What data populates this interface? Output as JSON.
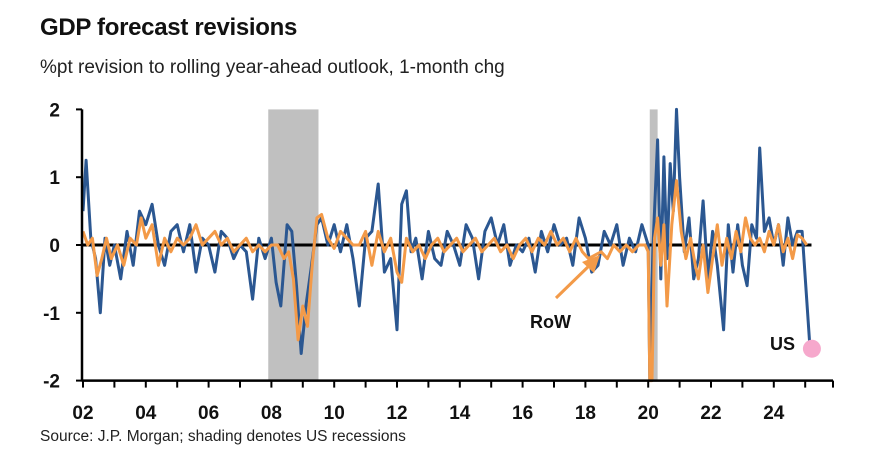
{
  "chart_data": {
    "type": "line",
    "title": "GDP forecast revisions",
    "subtitle": "%pt revision to rolling year-ahead outlook, 1-month chg",
    "source": "Source: J.P. Morgan; shading denotes US recessions",
    "xlabel": "",
    "ylabel": "",
    "xlim": [
      2002,
      2025.9
    ],
    "ylim": [
      -2,
      2
    ],
    "yticks": [
      2,
      1,
      0,
      -1,
      -2
    ],
    "xtick_labels": [
      "02",
      "04",
      "06",
      "08",
      "10",
      "12",
      "14",
      "16",
      "18",
      "20",
      "22",
      "24"
    ],
    "grid": false,
    "legend": "none",
    "recessions": [
      [
        2007.9,
        2009.5
      ],
      [
        2020.05,
        2020.3
      ]
    ],
    "colors": {
      "US": "#2b5791",
      "RoW": "#f39a48",
      "recession": "#c0c0c0",
      "endpoint": "#f6a8cc"
    },
    "annotations": [
      {
        "text": "RoW",
        "series": "RoW",
        "arrow": true
      },
      {
        "text": "US",
        "series": "US",
        "endpoint_marker": true
      }
    ],
    "series": [
      {
        "name": "US",
        "points": [
          [
            2002.0,
            0.5
          ],
          [
            2002.1,
            1.25
          ],
          [
            2002.25,
            0.1
          ],
          [
            2002.4,
            -0.2
          ],
          [
            2002.55,
            -1.0
          ],
          [
            2002.7,
            0.1
          ],
          [
            2002.85,
            -0.3
          ],
          [
            2003.0,
            0.0
          ],
          [
            2003.2,
            -0.5
          ],
          [
            2003.4,
            0.2
          ],
          [
            2003.6,
            -0.3
          ],
          [
            2003.8,
            0.5
          ],
          [
            2004.0,
            0.3
          ],
          [
            2004.2,
            0.6
          ],
          [
            2004.4,
            0.0
          ],
          [
            2004.6,
            -0.3
          ],
          [
            2004.8,
            0.2
          ],
          [
            2005.0,
            0.3
          ],
          [
            2005.2,
            -0.1
          ],
          [
            2005.4,
            0.3
          ],
          [
            2005.6,
            -0.4
          ],
          [
            2005.8,
            0.1
          ],
          [
            2006.0,
            0.0
          ],
          [
            2006.2,
            -0.4
          ],
          [
            2006.4,
            0.2
          ],
          [
            2006.6,
            0.1
          ],
          [
            2006.8,
            -0.2
          ],
          [
            2007.0,
            0.0
          ],
          [
            2007.2,
            -0.1
          ],
          [
            2007.4,
            -0.8
          ],
          [
            2007.6,
            0.1
          ],
          [
            2007.8,
            -0.2
          ],
          [
            2008.0,
            0.1
          ],
          [
            2008.15,
            -0.55
          ],
          [
            2008.3,
            -0.9
          ],
          [
            2008.5,
            0.3
          ],
          [
            2008.65,
            0.2
          ],
          [
            2008.8,
            -0.6
          ],
          [
            2008.95,
            -1.6
          ],
          [
            2009.1,
            -0.9
          ],
          [
            2009.25,
            -0.4
          ],
          [
            2009.45,
            0.3
          ],
          [
            2009.6,
            0.4
          ],
          [
            2009.8,
            0.0
          ],
          [
            2010.0,
            0.3
          ],
          [
            2010.2,
            -0.1
          ],
          [
            2010.4,
            0.3
          ],
          [
            2010.6,
            -0.2
          ],
          [
            2010.8,
            -0.9
          ],
          [
            2011.0,
            0.1
          ],
          [
            2011.2,
            0.2
          ],
          [
            2011.4,
            0.9
          ],
          [
            2011.6,
            -0.4
          ],
          [
            2011.8,
            -0.2
          ],
          [
            2012.0,
            -1.25
          ],
          [
            2012.15,
            0.6
          ],
          [
            2012.3,
            0.8
          ],
          [
            2012.45,
            -0.1
          ],
          [
            2012.6,
            0.1
          ],
          [
            2012.8,
            -0.5
          ],
          [
            2013.0,
            0.2
          ],
          [
            2013.2,
            -0.2
          ],
          [
            2013.4,
            -0.3
          ],
          [
            2013.6,
            0.2
          ],
          [
            2013.8,
            0.0
          ],
          [
            2014.0,
            -0.3
          ],
          [
            2014.2,
            0.3
          ],
          [
            2014.4,
            0.1
          ],
          [
            2014.6,
            -0.5
          ],
          [
            2014.8,
            0.2
          ],
          [
            2015.0,
            0.4
          ],
          [
            2015.2,
            0.0
          ],
          [
            2015.4,
            0.3
          ],
          [
            2015.6,
            -0.3
          ],
          [
            2015.8,
            0.0
          ],
          [
            2016.0,
            -0.1
          ],
          [
            2016.2,
            0.1
          ],
          [
            2016.4,
            -0.4
          ],
          [
            2016.6,
            0.2
          ],
          [
            2016.8,
            -0.1
          ],
          [
            2017.0,
            0.3
          ],
          [
            2017.2,
            0.0
          ],
          [
            2017.4,
            0.1
          ],
          [
            2017.6,
            -0.3
          ],
          [
            2017.8,
            0.4
          ],
          [
            2018.0,
            0.1
          ],
          [
            2018.2,
            -0.4
          ],
          [
            2018.4,
            -0.3
          ],
          [
            2018.6,
            0.2
          ],
          [
            2018.8,
            0.0
          ],
          [
            2019.0,
            0.3
          ],
          [
            2019.2,
            -0.3
          ],
          [
            2019.4,
            0.1
          ],
          [
            2019.6,
            -0.1
          ],
          [
            2019.8,
            0.3
          ],
          [
            2020.0,
            0.0
          ],
          [
            2020.05,
            -2.0
          ],
          [
            2020.15,
            -0.05
          ],
          [
            2020.3,
            1.55
          ],
          [
            2020.4,
            -0.5
          ],
          [
            2020.5,
            1.3
          ],
          [
            2020.6,
            -0.2
          ],
          [
            2020.7,
            1.2
          ],
          [
            2020.8,
            0.5
          ],
          [
            2020.9,
            2.0
          ],
          [
            2021.0,
            1.0
          ],
          [
            2021.15,
            -0.1
          ],
          [
            2021.3,
            0.4
          ],
          [
            2021.45,
            -0.5
          ],
          [
            2021.6,
            -0.2
          ],
          [
            2021.75,
            0.65
          ],
          [
            2021.9,
            -0.5
          ],
          [
            2022.05,
            0.2
          ],
          [
            2022.2,
            -0.3
          ],
          [
            2022.4,
            -1.25
          ],
          [
            2022.55,
            0.3
          ],
          [
            2022.7,
            -0.4
          ],
          [
            2022.85,
            0.3
          ],
          [
            2023.0,
            -0.3
          ],
          [
            2023.15,
            -0.6
          ],
          [
            2023.3,
            0.3
          ],
          [
            2023.45,
            0.1
          ],
          [
            2023.55,
            1.43
          ],
          [
            2023.7,
            0.2
          ],
          [
            2023.85,
            0.4
          ],
          [
            2024.0,
            0.0
          ],
          [
            2024.15,
            0.3
          ],
          [
            2024.3,
            -0.3
          ],
          [
            2024.45,
            0.4
          ],
          [
            2024.6,
            0.0
          ],
          [
            2024.75,
            0.2
          ],
          [
            2024.9,
            0.2
          ],
          [
            2025.15,
            -1.5
          ]
        ]
      },
      {
        "name": "RoW",
        "points": [
          [
            2002.0,
            0.2
          ],
          [
            2002.15,
            0.0
          ],
          [
            2002.3,
            0.1
          ],
          [
            2002.45,
            -0.45
          ],
          [
            2002.6,
            -0.2
          ],
          [
            2002.75,
            0.1
          ],
          [
            2002.9,
            -0.2
          ],
          [
            2003.1,
            0.0
          ],
          [
            2003.3,
            -0.3
          ],
          [
            2003.5,
            0.1
          ],
          [
            2003.7,
            0.0
          ],
          [
            2003.85,
            0.4
          ],
          [
            2004.0,
            0.1
          ],
          [
            2004.2,
            0.3
          ],
          [
            2004.4,
            -0.3
          ],
          [
            2004.6,
            0.1
          ],
          [
            2004.8,
            -0.1
          ],
          [
            2005.0,
            0.1
          ],
          [
            2005.2,
            0.0
          ],
          [
            2005.4,
            0.1
          ],
          [
            2005.6,
            0.3
          ],
          [
            2005.8,
            0.0
          ],
          [
            2006.0,
            0.1
          ],
          [
            2006.2,
            0.2
          ],
          [
            2006.4,
            0.0
          ],
          [
            2006.6,
            0.1
          ],
          [
            2006.8,
            -0.1
          ],
          [
            2007.0,
            0.0
          ],
          [
            2007.2,
            0.1
          ],
          [
            2007.4,
            -0.1
          ],
          [
            2007.6,
            0.0
          ],
          [
            2007.8,
            -0.1
          ],
          [
            2008.0,
            0.0
          ],
          [
            2008.2,
            0.0
          ],
          [
            2008.4,
            -0.2
          ],
          [
            2008.55,
            -0.1
          ],
          [
            2008.7,
            -0.5
          ],
          [
            2008.85,
            -1.4
          ],
          [
            2009.0,
            -0.9
          ],
          [
            2009.15,
            -1.2
          ],
          [
            2009.3,
            -0.3
          ],
          [
            2009.45,
            0.4
          ],
          [
            2009.6,
            0.45
          ],
          [
            2009.8,
            0.1
          ],
          [
            2010.0,
            -0.05
          ],
          [
            2010.2,
            0.2
          ],
          [
            2010.4,
            0.1
          ],
          [
            2010.6,
            0.0
          ],
          [
            2010.8,
            0.0
          ],
          [
            2011.0,
            0.2
          ],
          [
            2011.2,
            -0.3
          ],
          [
            2011.4,
            0.2
          ],
          [
            2011.6,
            -0.1
          ],
          [
            2011.8,
            0.1
          ],
          [
            2012.0,
            -0.4
          ],
          [
            2012.15,
            -0.55
          ],
          [
            2012.3,
            0.1
          ],
          [
            2012.5,
            -0.1
          ],
          [
            2012.7,
            0.0
          ],
          [
            2012.9,
            -0.2
          ],
          [
            2013.1,
            0.0
          ],
          [
            2013.3,
            0.1
          ],
          [
            2013.5,
            -0.1
          ],
          [
            2013.7,
            0.0
          ],
          [
            2013.9,
            0.1
          ],
          [
            2014.1,
            -0.1
          ],
          [
            2014.3,
            0.0
          ],
          [
            2014.5,
            0.1
          ],
          [
            2014.7,
            -0.1
          ],
          [
            2014.9,
            0.0
          ],
          [
            2015.1,
            0.1
          ],
          [
            2015.3,
            -0.1
          ],
          [
            2015.5,
            0.0
          ],
          [
            2015.7,
            -0.2
          ],
          [
            2015.9,
            0.0
          ],
          [
            2016.1,
            0.1
          ],
          [
            2016.3,
            -0.1
          ],
          [
            2016.5,
            0.1
          ],
          [
            2016.7,
            0.0
          ],
          [
            2016.9,
            0.2
          ],
          [
            2017.1,
            0.0
          ],
          [
            2017.3,
            0.1
          ],
          [
            2017.5,
            -0.1
          ],
          [
            2017.7,
            0.1
          ],
          [
            2017.9,
            -0.1
          ],
          [
            2018.1,
            -0.2
          ],
          [
            2018.3,
            -0.15
          ],
          [
            2018.5,
            -0.1
          ],
          [
            2018.7,
            -0.2
          ],
          [
            2018.9,
            0.0
          ],
          [
            2019.1,
            -0.1
          ],
          [
            2019.3,
            0.0
          ],
          [
            2019.5,
            -0.1
          ],
          [
            2019.7,
            0.0
          ],
          [
            2019.9,
            0.0
          ],
          [
            2020.0,
            -0.1
          ],
          [
            2020.05,
            -2.0
          ],
          [
            2020.12,
            -2.0
          ],
          [
            2020.2,
            0.1
          ],
          [
            2020.3,
            0.4
          ],
          [
            2020.4,
            -0.3
          ],
          [
            2020.5,
            0.3
          ],
          [
            2020.6,
            -0.9
          ],
          [
            2020.75,
            0.3
          ],
          [
            2020.9,
            0.95
          ],
          [
            2021.05,
            0.2
          ],
          [
            2021.2,
            -0.2
          ],
          [
            2021.35,
            0.1
          ],
          [
            2021.5,
            -0.3
          ],
          [
            2021.6,
            -0.5
          ],
          [
            2021.75,
            0.0
          ],
          [
            2021.9,
            -0.7
          ],
          [
            2022.05,
            -0.2
          ],
          [
            2022.2,
            0.3
          ],
          [
            2022.35,
            -0.3
          ],
          [
            2022.5,
            0.1
          ],
          [
            2022.65,
            -0.2
          ],
          [
            2022.8,
            0.2
          ],
          [
            2022.95,
            -0.1
          ],
          [
            2023.1,
            0.4
          ],
          [
            2023.25,
            0.1
          ],
          [
            2023.4,
            0.0
          ],
          [
            2023.55,
            0.1
          ],
          [
            2023.7,
            -0.1
          ],
          [
            2023.85,
            0.2
          ],
          [
            2024.0,
            0.0
          ],
          [
            2024.15,
            0.3
          ],
          [
            2024.3,
            -0.1
          ],
          [
            2024.45,
            0.1
          ],
          [
            2024.6,
            -0.2
          ],
          [
            2024.75,
            0.15
          ],
          [
            2024.9,
            0.1
          ],
          [
            2025.05,
            0.0
          ]
        ]
      }
    ]
  }
}
